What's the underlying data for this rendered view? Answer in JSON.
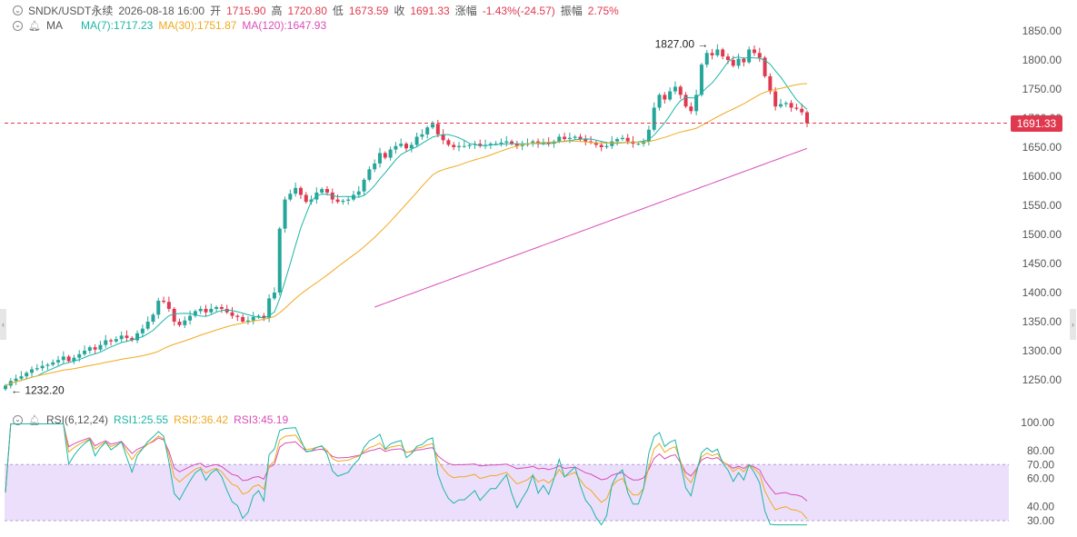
{
  "header": {
    "symbol": "SNDK/USDT永续",
    "datetime": "2026-08-18 16:00",
    "open_label": "开",
    "open": "1715.90",
    "high_label": "高",
    "high": "1720.80",
    "low_label": "低",
    "low": "1673.59",
    "close_label": "收",
    "close": "1691.33",
    "change_label": "涨幅",
    "change": "-1.43%(-24.57)",
    "amplitude_label": "振幅",
    "amplitude": "2.75%"
  },
  "ma_legend": {
    "name": "MA",
    "ma7": "MA(7):1717.23",
    "ma30": "MA(30):1751.87",
    "ma120": "MA(120):1647.93"
  },
  "rsi_legend": {
    "name": "RSI(6,12,24)",
    "rsi1": "RSI1:25.55",
    "rsi2": "RSI2:36.42",
    "rsi3": "RSI3:45.19"
  },
  "last_price_tag": "1691.33",
  "max_label": "1827.00",
  "min_label": "1232.20",
  "colors": {
    "up": "#26a69a",
    "down": "#e0394f",
    "ma7": "#1bb6a6",
    "ma30": "#f0a920",
    "ma120": "#d84fb7",
    "rsi_band": "#ecdffb"
  },
  "icons": {
    "collapse": "chevron-down-icon",
    "visibility": "bell-icon",
    "nav_left": "chevron-left-icon",
    "nav_right": "chevron-right-icon"
  },
  "chart_data": [
    {
      "type": "candlestick",
      "y_ticks": [
        1250,
        1300,
        1350,
        1400,
        1450,
        1500,
        1550,
        1600,
        1650,
        1700,
        1750,
        1800,
        1850
      ],
      "y_tick_labels": [
        "1250.00",
        "1300.00",
        "1350.00",
        "1400.00",
        "1450.00",
        "1500.00",
        "1550.00",
        "1600.00",
        "1650.00",
        "1700.00",
        "1750.00",
        "1800.00",
        "1850.00"
      ],
      "ylim": [
        1215,
        1865
      ],
      "last_price": 1691.33,
      "max": 1827.0,
      "min": 1232.2,
      "closes": [
        1240,
        1248,
        1252,
        1256,
        1262,
        1268,
        1270,
        1274,
        1276,
        1280,
        1284,
        1290,
        1282,
        1288,
        1294,
        1300,
        1306,
        1302,
        1310,
        1318,
        1316,
        1320,
        1326,
        1322,
        1318,
        1330,
        1338,
        1350,
        1362,
        1386,
        1384,
        1372,
        1350,
        1344,
        1352,
        1360,
        1368,
        1372,
        1366,
        1372,
        1375,
        1372,
        1366,
        1360,
        1358,
        1350,
        1352,
        1358,
        1360,
        1356,
        1390,
        1400,
        1510,
        1560,
        1570,
        1580,
        1568,
        1556,
        1560,
        1572,
        1578,
        1572,
        1560,
        1556,
        1558,
        1560,
        1568,
        1574,
        1594,
        1612,
        1622,
        1640,
        1632,
        1646,
        1652,
        1656,
        1648,
        1654,
        1668,
        1672,
        1684,
        1690,
        1672,
        1662,
        1654,
        1650,
        1652,
        1652,
        1654,
        1656,
        1652,
        1654,
        1656,
        1656,
        1658,
        1660,
        1656,
        1652,
        1654,
        1656,
        1660,
        1656,
        1658,
        1656,
        1660,
        1668,
        1664,
        1666,
        1668,
        1664,
        1660,
        1658,
        1654,
        1650,
        1652,
        1660,
        1664,
        1666,
        1660,
        1656,
        1656,
        1660,
        1680,
        1718,
        1740,
        1732,
        1746,
        1754,
        1740,
        1720,
        1712,
        1740,
        1792,
        1812,
        1808,
        1818,
        1806,
        1800,
        1790,
        1802,
        1796,
        1818,
        1812,
        1804,
        1772,
        1746,
        1720,
        1724,
        1726,
        1718,
        1716,
        1710,
        1691.33
      ],
      "rsi": {
        "ylim": [
          25,
          105
        ],
        "band": [
          30,
          70
        ],
        "ticks": [
          100,
          80,
          70,
          60,
          40,
          30
        ],
        "tick_labels": [
          "100.00",
          "80.00",
          "70.00",
          "60.00",
          "40.00",
          "30.00"
        ],
        "rsi1_last": 25.55,
        "rsi2_last": 36.42,
        "rsi3_last": 45.19
      }
    }
  ]
}
